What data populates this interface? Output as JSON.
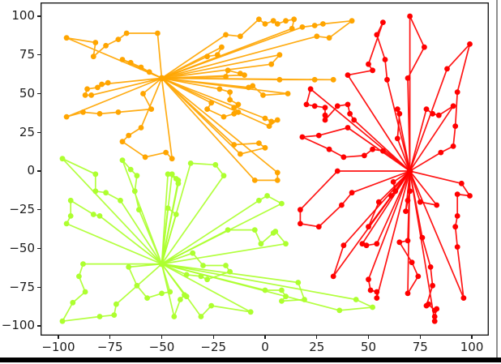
{
  "window": {
    "background": "#ffffff",
    "right_border_color": "#8f8f8f",
    "bottom_bar_color": "#000000"
  },
  "chart_data": {
    "type": "scatter",
    "subtype": "clustered-route-network-with-lines",
    "title": "",
    "xlabel": "",
    "ylabel": "",
    "grid": false,
    "legend": null,
    "xlim": [
      -108.6,
      108.2
    ],
    "ylim": [
      -106.3,
      108.9
    ],
    "xticks": {
      "values": [
        -100,
        -75,
        -50,
        -25,
        0,
        25,
        50,
        75,
        100
      ],
      "labels": [
        "−100",
        "−75",
        "−50",
        "−25",
        "0",
        "25",
        "50",
        "75",
        "100"
      ]
    },
    "yticks": {
      "values": [
        100,
        75,
        50,
        25,
        0,
        -25,
        -50,
        -75,
        -100
      ],
      "labels": [
        "100",
        "75",
        "50",
        "25",
        "0",
        "−25",
        "−50",
        "−75",
        "−100"
      ]
    },
    "clusters": [
      {
        "name": "orange-cluster",
        "color": "#FFA500",
        "hub": [
          -50,
          60
        ],
        "routes": [
          [
            [
              -96,
              86
            ],
            [
              -82,
              83
            ],
            [
              -83,
              74
            ],
            [
              -77,
              81
            ],
            [
              -71,
              85
            ],
            [
              -67,
              89
            ],
            [
              -52,
              89
            ]
          ],
          [
            [
              -69,
              72
            ],
            [
              -65,
              70
            ],
            [
              -60,
              67
            ],
            [
              -56,
              64
            ]
          ],
          [
            [
              -79,
              56
            ],
            [
              -76,
              57
            ],
            [
              -81,
              54
            ],
            [
              -86,
              53
            ],
            [
              -87,
              49
            ],
            [
              -84,
              49
            ]
          ],
          [
            [
              -59,
              50
            ],
            [
              -55,
              40
            ],
            [
              -71,
              38
            ],
            [
              -80,
              37
            ],
            [
              -88,
              38
            ],
            [
              -96,
              35
            ]
          ],
          [
            [
              -60,
              28
            ],
            [
              -66,
              23
            ],
            [
              -69,
              19
            ],
            [
              -58,
              9
            ],
            [
              -48,
              12
            ],
            [
              -45,
              8
            ]
          ],
          [
            [
              -26,
              44
            ],
            [
              -28,
              40
            ],
            [
              -20,
              35
            ],
            [
              -15,
              37
            ],
            [
              -13,
              38
            ],
            [
              -15,
              41
            ],
            [
              -13,
              43
            ],
            [
              -17,
              46
            ],
            [
              -17,
              51
            ],
            [
              -22,
              53
            ]
          ],
          [
            [
              -8,
              54
            ],
            [
              -6,
              55
            ],
            [
              -1,
              49
            ],
            [
              11,
              50
            ]
          ],
          [
            [
              7,
              59
            ],
            [
              24,
              59
            ],
            [
              33,
              59
            ]
          ],
          [
            [
              -19,
              61
            ],
            [
              -18,
              65
            ],
            [
              -12,
              63
            ],
            [
              -10,
              62
            ]
          ],
          [
            [
              -21,
              80
            ],
            [
              -23,
              75
            ],
            [
              -28,
              74
            ]
          ],
          [
            [
              -19,
              88
            ],
            [
              -12,
              87
            ],
            [
              -3,
              98
            ],
            [
              0,
              95
            ],
            [
              4,
              97
            ],
            [
              6,
              95
            ],
            [
              10,
              97
            ],
            [
              14,
              98
            ],
            [
              13,
              92
            ]
          ],
          [
            [
              18,
              93
            ],
            [
              24,
              94
            ],
            [
              28,
              95
            ],
            [
              42,
              97
            ],
            [
              31,
              86
            ],
            [
              25,
              87
            ]
          ],
          [
            [
              7,
              75
            ],
            [
              3,
              69
            ]
          ],
          [
            [
              0,
              34
            ],
            [
              3,
              32
            ],
            [
              6,
              33
            ],
            [
              2,
              29
            ]
          ],
          [
            [
              -15,
              17
            ],
            [
              -3,
              18
            ],
            [
              0,
              15
            ],
            [
              -12,
              11
            ]
          ],
          [
            [
              -5,
              -6
            ],
            [
              6,
              -6
            ],
            [
              6,
              -1
            ]
          ]
        ]
      },
      {
        "name": "green-cluster",
        "color": "#ADFF2F",
        "hub": [
          -50,
          -60
        ],
        "routes": [
          [
            [
              -88,
              -60
            ],
            [
              -90,
              -68
            ],
            [
              -87,
              -78
            ],
            [
              -93,
              -85
            ],
            [
              -98,
              -97
            ],
            [
              -80,
              -94
            ],
            [
              -73,
              -93
            ],
            [
              -72,
              -86
            ]
          ],
          [
            [
              -66,
              -62
            ],
            [
              -62,
              -74
            ],
            [
              -57,
              -82
            ],
            [
              -50,
              -79
            ],
            [
              -46,
              -78
            ]
          ],
          [
            [
              -44,
              -94
            ],
            [
              -41,
              -83
            ],
            [
              -39,
              -80
            ]
          ],
          [
            [
              -35,
              -53
            ],
            [
              -30,
              -61
            ],
            [
              -19,
              -61
            ],
            [
              -17,
              -65
            ],
            [
              -28,
              -70
            ],
            [
              -31,
              -68
            ],
            [
              -38,
              -67
            ]
          ],
          [
            [
              -38,
              -81
            ],
            [
              -31,
              -94
            ],
            [
              -26,
              -87
            ],
            [
              -7,
              -91
            ]
          ],
          [
            [
              0,
              -77
            ],
            [
              8,
              -77
            ],
            [
              10,
              -81
            ],
            [
              8,
              -84
            ],
            [
              19,
              -83
            ],
            [
              16,
              -72
            ]
          ],
          [
            [
              36,
              -90
            ],
            [
              52,
              -88
            ],
            [
              44,
              -83
            ]
          ],
          [
            [
              -18,
              -38
            ],
            [
              -5,
              -38
            ],
            [
              -2,
              -47
            ],
            [
              4,
              -40
            ],
            [
              5,
              -39
            ],
            [
              10,
              -47
            ]
          ],
          [
            [
              -3,
              -19
            ],
            [
              1,
              -16
            ],
            [
              8,
              -21
            ]
          ],
          [
            [
              -47,
              -24
            ],
            [
              -43,
              -28
            ]
          ],
          [
            [
              -47,
              -2
            ],
            [
              -43,
              -5
            ],
            [
              -42,
              -8
            ]
          ],
          [
            [
              -69,
              7
            ],
            [
              -65,
              1
            ],
            [
              -62,
              -3
            ],
            [
              -63,
              -13
            ],
            [
              -61,
              -25
            ]
          ],
          [
            [
              -98,
              8
            ],
            [
              -82,
              -2
            ],
            [
              -82,
              -13
            ],
            [
              -77,
              -14
            ],
            [
              -70,
              -19
            ]
          ],
          [
            [
              -80,
              -29
            ],
            [
              -83,
              -28
            ],
            [
              -94,
              -19
            ],
            [
              -94,
              -29
            ],
            [
              -96,
              -34
            ]
          ],
          [
            [
              -36,
              5
            ],
            [
              -24,
              4
            ],
            [
              -20,
              -3
            ]
          ],
          [
            [
              -45,
              -2
            ],
            [
              -42,
              -6
            ]
          ]
        ]
      },
      {
        "name": "red-cluster",
        "color": "#FF0000",
        "hub": [
          70,
          0
        ],
        "routes": [
          [
            [
              69,
              60
            ],
            [
              77,
              80
            ],
            [
              70,
              100
            ]
          ],
          [
            [
              59,
              59
            ],
            [
              58,
              72
            ],
            [
              54,
              88
            ],
            [
              57,
              96
            ],
            [
              50,
              69
            ],
            [
              52,
              65
            ],
            [
              40,
              62
            ]
          ],
          [
            [
              85,
              12
            ],
            [
              91,
              16
            ],
            [
              92,
              29
            ],
            [
              93,
              51
            ],
            [
              99,
              82
            ],
            [
              88,
              66
            ]
          ],
          [
            [
              64,
              21
            ],
            [
              65,
              37
            ],
            [
              64,
              40
            ]
          ],
          [
            [
              78,
              40
            ],
            [
              81,
              37
            ],
            [
              84,
              36
            ],
            [
              91,
              42
            ]
          ],
          [
            [
              22,
              53
            ],
            [
              20,
              43
            ],
            [
              24,
              42
            ],
            [
              29,
              41
            ],
            [
              29,
              36
            ],
            [
              29,
              33
            ],
            [
              35,
              42
            ],
            [
              40,
              43
            ],
            [
              41,
              37
            ],
            [
              43,
              33
            ]
          ],
          [
            [
              40,
              28
            ],
            [
              26,
              23
            ],
            [
              18,
              22
            ],
            [
              31,
              14
            ],
            [
              38,
              9
            ],
            [
              48,
              10
            ],
            [
              52,
              14
            ],
            [
              57,
              13
            ]
          ],
          [
            [
              35,
              0
            ],
            [
              17,
              -25
            ],
            [
              17,
              -34
            ],
            [
              26,
              -36
            ],
            [
              37,
              -22
            ],
            [
              42,
              -14
            ]
          ],
          [
            [
              55,
              -20
            ],
            [
              50,
              -36
            ]
          ],
          [
            [
              62,
              -7
            ],
            [
              63,
              -13
            ],
            [
              61,
              -16
            ]
          ],
          [
            [
              75,
              -20
            ],
            [
              83,
              -22
            ]
          ],
          [
            [
              70,
              -13
            ],
            [
              69,
              -19
            ],
            [
              68,
              -26
            ]
          ],
          [
            [
              95,
              -8
            ],
            [
              99,
              -16
            ],
            [
              93,
              -15
            ],
            [
              93,
              -29
            ],
            [
              92,
              -36
            ],
            [
              93,
              -49
            ],
            [
              96,
              -82
            ]
          ],
          [
            [
              38,
              -48
            ],
            [
              33,
              -68
            ]
          ],
          [
            [
              47,
              -47
            ],
            [
              49,
              -48
            ],
            [
              54,
              -47
            ]
          ],
          [
            [
              50,
              -70
            ],
            [
              51,
              -77
            ],
            [
              54,
              -78
            ],
            [
              54,
              -82
            ]
          ],
          [
            [
              69,
              -45
            ],
            [
              65,
              -46
            ],
            [
              71,
              -59
            ],
            [
              74,
              -68
            ],
            [
              69,
              -79
            ]
          ],
          [
            [
              76,
              -43
            ],
            [
              80,
              -62
            ],
            [
              81,
              -74
            ],
            [
              78,
              -87
            ],
            [
              79,
              -86
            ],
            [
              82,
              -90
            ],
            [
              83,
              -89
            ],
            [
              82,
              -94
            ],
            [
              82,
              -97
            ]
          ]
        ]
      }
    ]
  }
}
